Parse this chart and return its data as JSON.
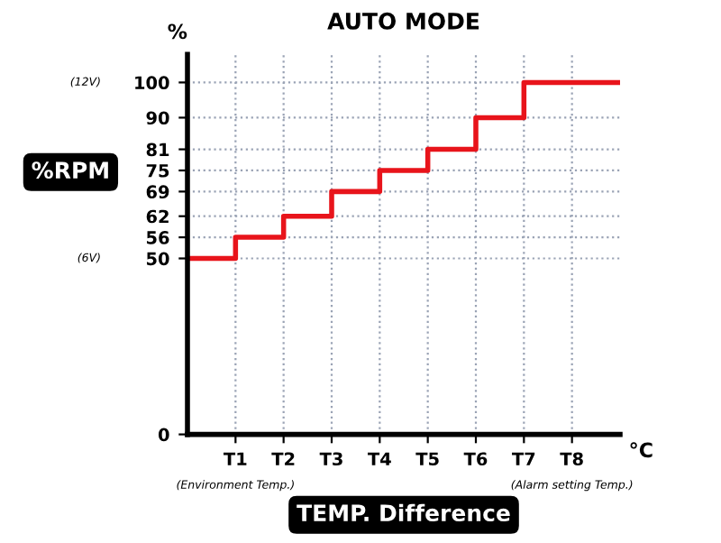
{
  "chart_data": {
    "type": "step",
    "title": "AUTO MODE",
    "xlabel": "TEMP. Difference",
    "ylabel": "%RPM",
    "categories": [
      null,
      "T1",
      "T2",
      "T3",
      "T4",
      "T5",
      "T6",
      "T7",
      "T8",
      null
    ],
    "series": [
      {
        "color": "#e8141b",
        "values": [
          50,
          56,
          62,
          69,
          75,
          81,
          90,
          100,
          100,
          100
        ]
      }
    ],
    "ylim": [
      0,
      108
    ],
    "yticks": [
      0,
      50,
      56,
      62,
      69,
      75,
      81,
      90,
      100
    ],
    "grid": true,
    "line_style": "solid",
    "marker": "none",
    "annotations": [
      "%",
      "°C",
      "(12V)",
      "(6V)",
      "(Environment Temp.)",
      "(Alarm setting Temp.)"
    ]
  }
}
